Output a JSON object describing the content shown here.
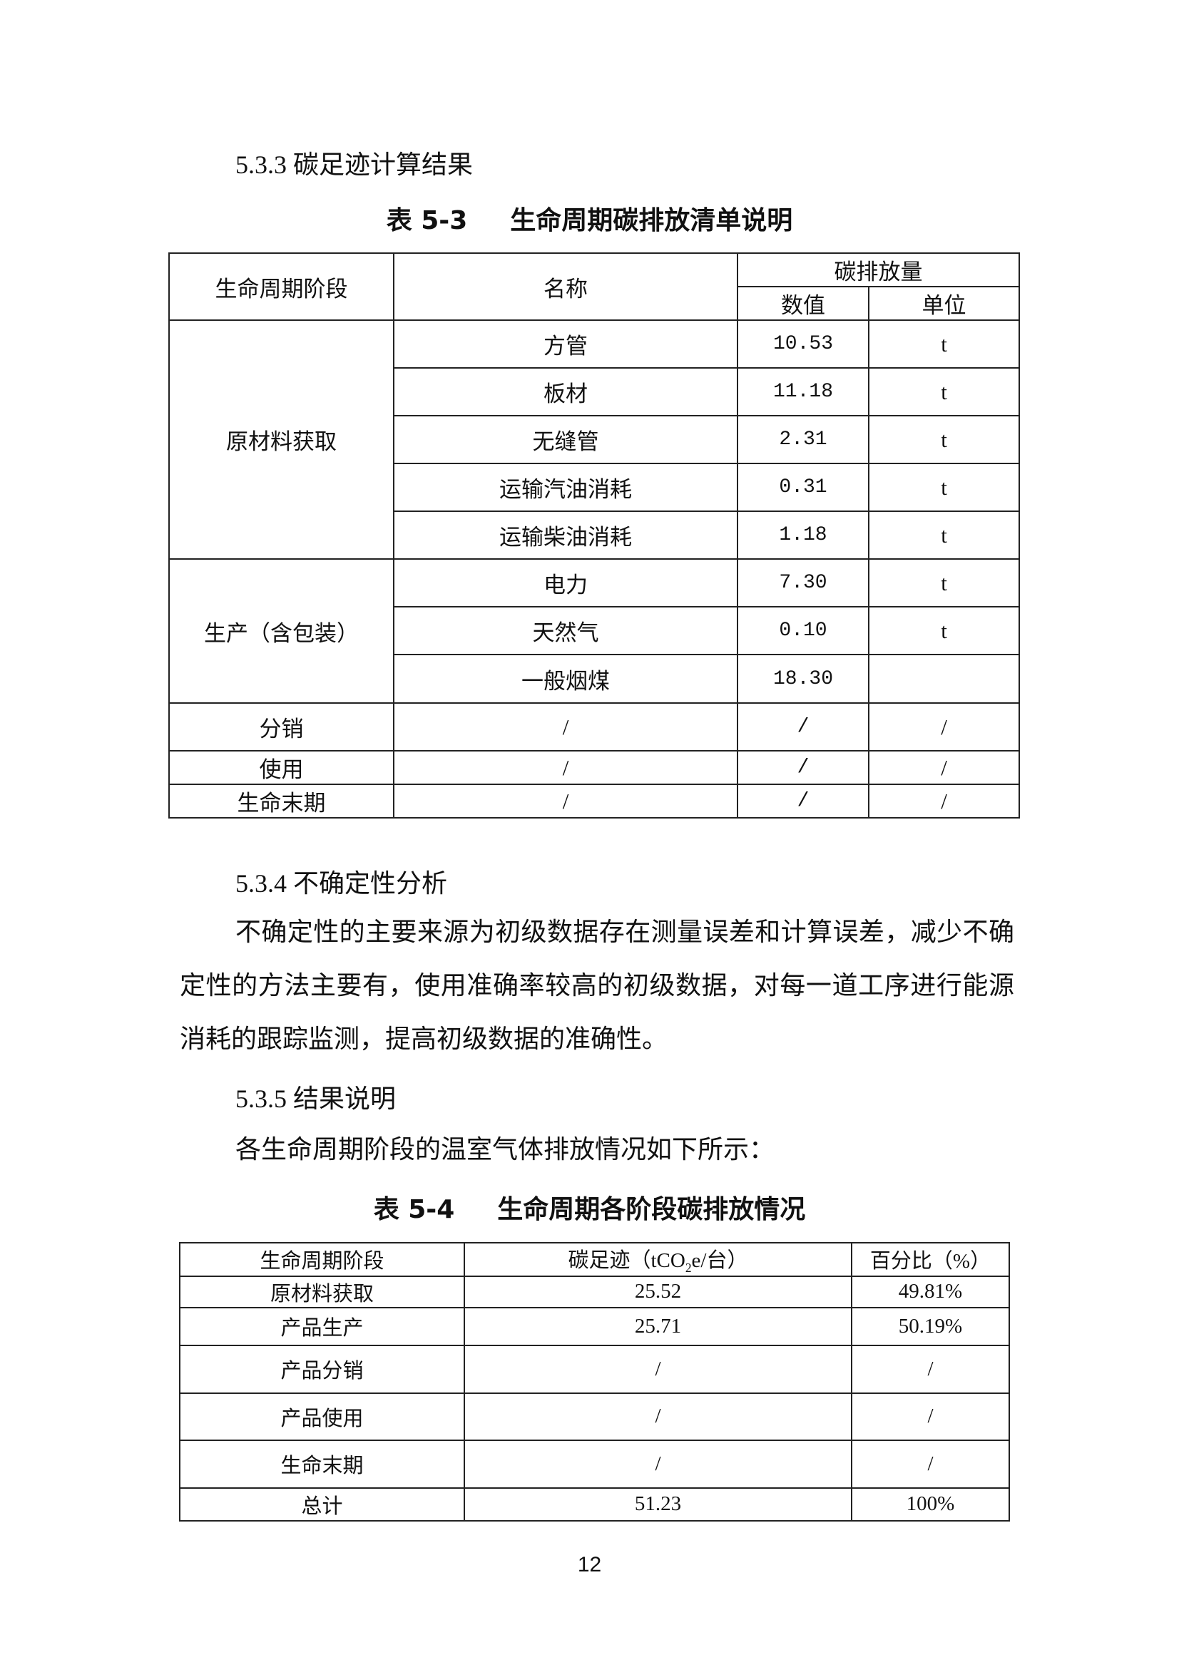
{
  "section_533": "5.3.3 碳足迹计算结果",
  "table53": {
    "label": "表 5-3",
    "caption": "生命周期碳排放清单说明",
    "headers": {
      "stage": "生命周期阶段",
      "name": "名称",
      "emission": "碳排放量",
      "value": "数值",
      "unit": "单位"
    },
    "groups": [
      {
        "stage": "原材料获取",
        "rows": [
          {
            "name": "方管",
            "value": "10.53",
            "unit": "t"
          },
          {
            "name": "板材",
            "value": "11.18",
            "unit": "t"
          },
          {
            "name": "无缝管",
            "value": "2.31",
            "unit": "t"
          },
          {
            "name": "运输汽油消耗",
            "value": "0.31",
            "unit": "t"
          },
          {
            "name": "运输柴油消耗",
            "value": "1.18",
            "unit": "t"
          }
        ]
      },
      {
        "stage": "生产（含包装）",
        "rows": [
          {
            "name": "电力",
            "value": "7.30",
            "unit": "t"
          },
          {
            "name": "天然气",
            "value": "0.10",
            "unit": "t"
          },
          {
            "name": "一般烟煤",
            "value": "18.30",
            "unit": ""
          }
        ]
      },
      {
        "stage": "分销",
        "rows": [
          {
            "name": "/",
            "value": "/",
            "unit": "/"
          }
        ]
      },
      {
        "stage": "使用",
        "rows": [
          {
            "name": "/",
            "value": "/",
            "unit": "/"
          }
        ]
      },
      {
        "stage": "生命末期",
        "rows": [
          {
            "name": "/",
            "value": "/",
            "unit": "/"
          }
        ]
      }
    ]
  },
  "section_534": "5.3.4 不确定性分析",
  "para_534": "不确定性的主要来源为初级数据存在测量误差和计算误差，减少不确定性的方法主要有，使用准确率较高的初级数据，对每一道工序进行能源消耗的跟踪监测，提高初级数据的准确性。",
  "section_535": "5.3.5 结果说明",
  "para_535": "各生命周期阶段的温室气体排放情况如下所示：",
  "table54": {
    "label": "表 5-4",
    "caption": "生命周期各阶段碳排放情况",
    "headers": {
      "stage": "生命周期阶段",
      "footprint_pre": "碳足迹（tCO",
      "footprint_sub": "2",
      "footprint_post": "e/台）",
      "percent": "百分比（%）"
    },
    "rows": [
      {
        "stage": "原材料获取",
        "footprint": "25.52",
        "percent": "49.81%"
      },
      {
        "stage": "产品生产",
        "footprint": "25.71",
        "percent": "50.19%"
      },
      {
        "stage": "产品分销",
        "footprint": "/",
        "percent": "/"
      },
      {
        "stage": "产品使用",
        "footprint": "/",
        "percent": "/"
      },
      {
        "stage": "生命末期",
        "footprint": "/",
        "percent": "/"
      },
      {
        "stage": "总计",
        "footprint": "51.23",
        "percent": "100%"
      }
    ]
  },
  "page_number": "12"
}
